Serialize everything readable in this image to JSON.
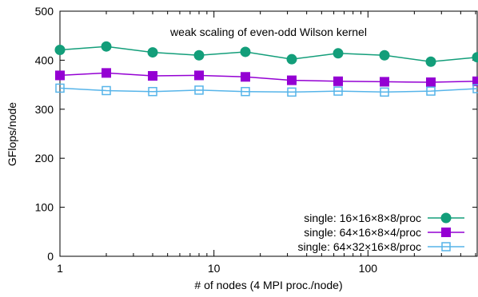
{
  "chart_data": {
    "type": "line",
    "title": "weak scaling of even-odd Wilson kernel",
    "xlabel": "# of nodes (4 MPI proc./node)",
    "ylabel": "GFlops/node",
    "xscale": "log",
    "xlim": [
      1,
      512
    ],
    "ylim": [
      0,
      500
    ],
    "xticks": [
      1,
      10,
      100
    ],
    "xtick_labels": [
      "1",
      "10",
      "100"
    ],
    "yticks": [
      0,
      100,
      200,
      300,
      400,
      500
    ],
    "ytick_labels": [
      "0",
      "100",
      "200",
      "300",
      "400",
      "500"
    ],
    "grid": false,
    "legend_position": "bottom-right",
    "x": [
      1,
      2,
      4,
      8,
      16,
      32,
      64,
      128,
      256,
      512
    ],
    "series": [
      {
        "name": "single: 16×16×8×8/proc",
        "color": "#139e7a",
        "marker": "filled-circle",
        "values": [
          421,
          428,
          416,
          410,
          417,
          402,
          414,
          410,
          397,
          406
        ]
      },
      {
        "name": "single: 64×16×8×4/proc",
        "color": "#9400d3",
        "marker": "filled-square",
        "values": [
          369,
          374,
          368,
          369,
          366,
          359,
          357,
          356,
          355,
          357
        ]
      },
      {
        "name": "single: 64×32×16×8/proc",
        "color": "#56b4e9",
        "marker": "open-square",
        "values": [
          343,
          338,
          336,
          339,
          336,
          335,
          337,
          335,
          337,
          342
        ]
      }
    ]
  }
}
